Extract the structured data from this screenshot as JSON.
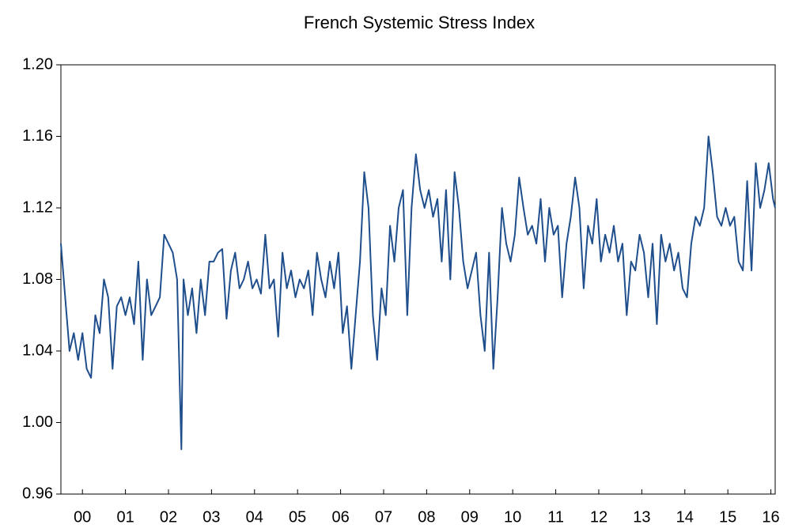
{
  "chart_data": {
    "type": "line",
    "title": "French Systemic Stress Index",
    "x": [
      1999.5,
      1999.6,
      1999.7,
      1999.8,
      1999.9,
      2000.0,
      2000.1,
      2000.2,
      2000.3,
      2000.4,
      2000.5,
      2000.6,
      2000.7,
      2000.8,
      2000.9,
      2001.0,
      2001.1,
      2001.2,
      2001.3,
      2001.4,
      2001.5,
      2001.6,
      2001.7,
      2001.8,
      2001.9,
      2002.0,
      2002.1,
      2002.2,
      2002.3,
      2002.35,
      2002.45,
      2002.55,
      2002.65,
      2002.75,
      2002.85,
      2002.95,
      2003.05,
      2003.15,
      2003.25,
      2003.35,
      2003.45,
      2003.55,
      2003.65,
      2003.75,
      2003.85,
      2003.95,
      2004.05,
      2004.15,
      2004.25,
      2004.35,
      2004.45,
      2004.55,
      2004.65,
      2004.75,
      2004.85,
      2004.95,
      2005.05,
      2005.15,
      2005.25,
      2005.35,
      2005.45,
      2005.55,
      2005.65,
      2005.75,
      2005.85,
      2005.95,
      2006.05,
      2006.15,
      2006.25,
      2006.35,
      2006.45,
      2006.55,
      2006.65,
      2006.75,
      2006.85,
      2006.95,
      2007.05,
      2007.15,
      2007.25,
      2007.35,
      2007.45,
      2007.55,
      2007.65,
      2007.75,
      2007.85,
      2007.95,
      2008.05,
      2008.15,
      2008.25,
      2008.35,
      2008.45,
      2008.55,
      2008.65,
      2008.75,
      2008.85,
      2008.95,
      2009.05,
      2009.15,
      2009.25,
      2009.35,
      2009.45,
      2009.55,
      2009.65,
      2009.75,
      2009.85,
      2009.95,
      2010.05,
      2010.15,
      2010.25,
      2010.35,
      2010.45,
      2010.55,
      2010.65,
      2010.75,
      2010.85,
      2010.95,
      2011.05,
      2011.15,
      2011.25,
      2011.35,
      2011.45,
      2011.55,
      2011.65,
      2011.75,
      2011.85,
      2011.95,
      2012.05,
      2012.15,
      2012.25,
      2012.35,
      2012.45,
      2012.55,
      2012.65,
      2012.75,
      2012.85,
      2012.95,
      2013.05,
      2013.15,
      2013.25,
      2013.35,
      2013.45,
      2013.55,
      2013.65,
      2013.75,
      2013.85,
      2013.95,
      2014.05,
      2014.15,
      2014.25,
      2014.35,
      2014.45,
      2014.55,
      2014.65,
      2014.75,
      2014.85,
      2014.95,
      2015.05,
      2015.15,
      2015.25,
      2015.35,
      2015.45,
      2015.55,
      2015.65,
      2015.75,
      2015.85,
      2015.95,
      2016.05,
      2016.1
    ],
    "series": [
      {
        "color": "#1f4e8c",
        "values": [
          1.1,
          1.07,
          1.04,
          1.05,
          1.035,
          1.05,
          1.03,
          1.025,
          1.06,
          1.05,
          1.08,
          1.07,
          1.03,
          1.065,
          1.07,
          1.06,
          1.07,
          1.055,
          1.09,
          1.035,
          1.08,
          1.06,
          1.065,
          1.07,
          1.105,
          1.1,
          1.095,
          1.08,
          0.985,
          1.08,
          1.06,
          1.075,
          1.05,
          1.08,
          1.06,
          1.09,
          1.09,
          1.095,
          1.097,
          1.058,
          1.085,
          1.095,
          1.075,
          1.08,
          1.09,
          1.075,
          1.08,
          1.072,
          1.105,
          1.075,
          1.08,
          1.048,
          1.095,
          1.075,
          1.085,
          1.07,
          1.08,
          1.075,
          1.085,
          1.06,
          1.095,
          1.08,
          1.07,
          1.09,
          1.075,
          1.095,
          1.05,
          1.065,
          1.03,
          1.06,
          1.09,
          1.14,
          1.12,
          1.06,
          1.035,
          1.075,
          1.06,
          1.11,
          1.09,
          1.12,
          1.13,
          1.06,
          1.12,
          1.15,
          1.13,
          1.12,
          1.13,
          1.115,
          1.125,
          1.09,
          1.13,
          1.08,
          1.14,
          1.12,
          1.09,
          1.075,
          1.085,
          1.095,
          1.06,
          1.04,
          1.095,
          1.03,
          1.07,
          1.12,
          1.1,
          1.09,
          1.105,
          1.137,
          1.12,
          1.105,
          1.11,
          1.1,
          1.125,
          1.09,
          1.12,
          1.105,
          1.11,
          1.07,
          1.1,
          1.115,
          1.137,
          1.12,
          1.075,
          1.11,
          1.1,
          1.125,
          1.09,
          1.105,
          1.095,
          1.11,
          1.09,
          1.1,
          1.06,
          1.09,
          1.085,
          1.105,
          1.095,
          1.07,
          1.1,
          1.055,
          1.105,
          1.09,
          1.1,
          1.085,
          1.095,
          1.075,
          1.07,
          1.1,
          1.115,
          1.11,
          1.12,
          1.16,
          1.14,
          1.115,
          1.11,
          1.12,
          1.11,
          1.115,
          1.09,
          1.085,
          1.135,
          1.085,
          1.145,
          1.12,
          1.13,
          1.145,
          1.125,
          1.12
        ]
      }
    ],
    "xlim": [
      1999.5,
      2016.1
    ],
    "xticks": [
      {
        "value": 2000,
        "label": "00"
      },
      {
        "value": 2001,
        "label": "01"
      },
      {
        "value": 2002,
        "label": "02"
      },
      {
        "value": 2003,
        "label": "03"
      },
      {
        "value": 2004,
        "label": "04"
      },
      {
        "value": 2005,
        "label": "05"
      },
      {
        "value": 2006,
        "label": "06"
      },
      {
        "value": 2007,
        "label": "07"
      },
      {
        "value": 2008,
        "label": "08"
      },
      {
        "value": 2009,
        "label": "09"
      },
      {
        "value": 2010,
        "label": "10"
      },
      {
        "value": 2011,
        "label": "11"
      },
      {
        "value": 2012,
        "label": "12"
      },
      {
        "value": 2013,
        "label": "13"
      },
      {
        "value": 2014,
        "label": "14"
      },
      {
        "value": 2015,
        "label": "15"
      },
      {
        "value": 2016,
        "label": "16"
      }
    ],
    "ylim": [
      0.96,
      1.2
    ],
    "yticks": [
      {
        "value": 0.96,
        "label": "0.96"
      },
      {
        "value": 1.0,
        "label": "1.00"
      },
      {
        "value": 1.04,
        "label": "1.04"
      },
      {
        "value": 1.08,
        "label": "1.08"
      },
      {
        "value": 1.12,
        "label": "1.12"
      },
      {
        "value": 1.16,
        "label": "1.16"
      },
      {
        "value": 1.2,
        "label": "1.20"
      }
    ],
    "grid": false
  }
}
